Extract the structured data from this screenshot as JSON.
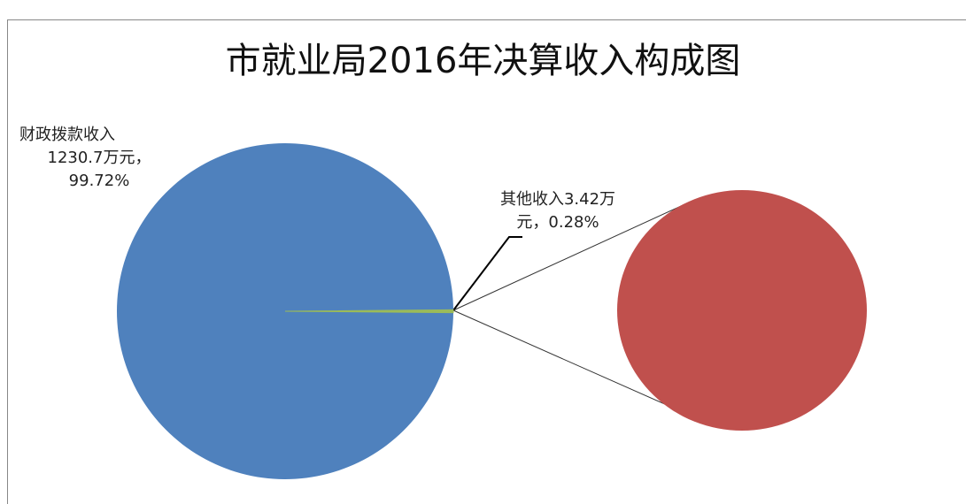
{
  "chart_data": {
    "type": "pie-of-pie",
    "title": "市就业局2016年决算收入构成图",
    "categories": [
      "财政拨款收入",
      "其他收入"
    ],
    "values": [
      1230.7,
      3.42
    ],
    "value_labels": [
      "1230.7万元，",
      "3.42万元，"
    ],
    "percent_labels": [
      "99.72%",
      "0.28%"
    ],
    "colors": [
      "#4f81bd",
      "#c0504d"
    ],
    "group_color": "#9bbb59"
  }
}
